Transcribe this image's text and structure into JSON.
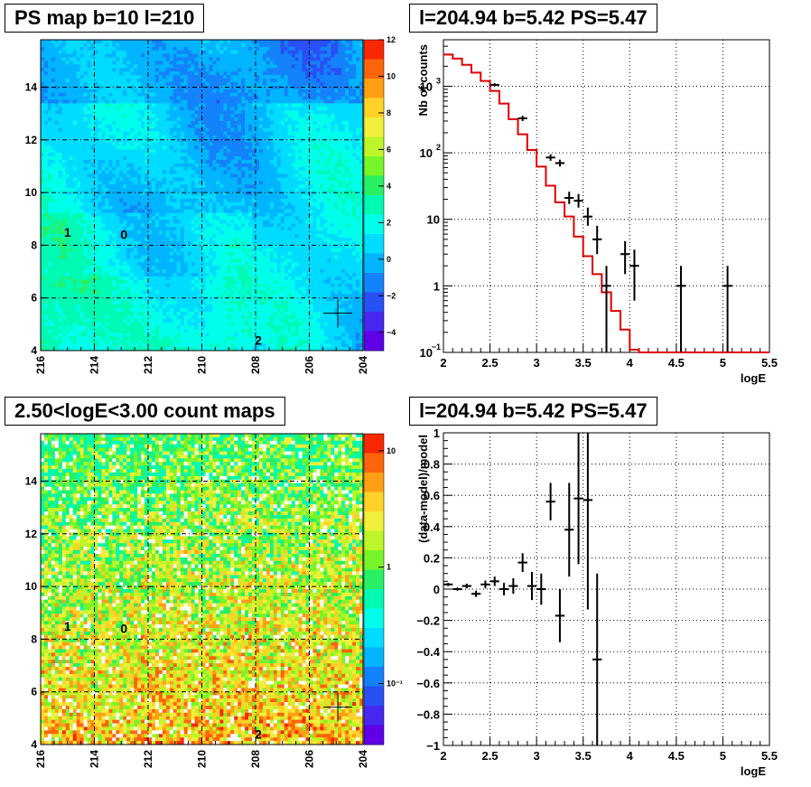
{
  "panels": {
    "tl": {
      "title": "PS map b=10 l=210"
    },
    "tr": {
      "title": "l=204.94 b=5.42 PS=5.47"
    },
    "bl": {
      "title": "2.50<logE<3.00 count maps"
    },
    "br": {
      "title": "l=204.94 b=5.42 PS=5.47"
    }
  },
  "chart_data": [
    {
      "type": "heatmap",
      "title": "PS map b=10 l=210",
      "x_ticks": [
        "216",
        "214",
        "212",
        "210",
        "208",
        "206",
        "204"
      ],
      "y_ticks": [
        "4",
        "6",
        "8",
        "10",
        "12",
        "14"
      ],
      "xlim": [
        216,
        204
      ],
      "ylim": [
        4,
        15.8
      ],
      "colorbar_ticks": [
        "12",
        "10",
        "8",
        "6",
        "4",
        "2",
        "0",
        "−2",
        "−4"
      ],
      "colorbar_range": [
        -5,
        12
      ],
      "source_labels": [
        {
          "label": "1",
          "l": 215.0,
          "b": 8.5
        },
        {
          "label": "0",
          "l": 212.9,
          "b": 8.4
        },
        {
          "label": "2",
          "l": 207.9,
          "b": 4.4
        }
      ],
      "marker": {
        "l": 204.94,
        "b": 5.42
      }
    },
    {
      "type": "line",
      "title": "l=204.94 b=5.42 PS=5.47",
      "xlabel": "logE",
      "ylabel": "Nb of counts",
      "xlim": [
        2,
        5.5
      ],
      "ylim": [
        0.1,
        5000
      ],
      "log_y": true,
      "grid": true,
      "x_ticks": [
        "2",
        "2.5",
        "3",
        "3.5",
        "4",
        "4.5",
        "5",
        "5.5"
      ],
      "y_ticks": [
        {
          "value": 1000,
          "base": "10",
          "exp": "3"
        },
        {
          "value": 100,
          "base": "10",
          "exp": "2"
        },
        {
          "value": 10,
          "base": "10",
          "exp": ""
        },
        {
          "value": 1,
          "base": "1",
          "exp": ""
        },
        {
          "value": 0.1,
          "base": "10",
          "exp": "−1"
        }
      ],
      "model_step": {
        "edges": [
          2.0,
          2.1,
          2.2,
          2.3,
          2.4,
          2.5,
          2.6,
          2.7,
          2.8,
          2.9,
          3.0,
          3.1,
          3.2,
          3.3,
          3.4,
          3.5,
          3.6,
          3.7,
          3.8,
          3.9,
          4.0,
          4.1,
          5.5
        ],
        "values": [
          3000,
          2600,
          2100,
          1600,
          1200,
          850,
          550,
          320,
          190,
          110,
          62,
          32,
          18,
          11,
          5.5,
          2.8,
          1.5,
          0.8,
          0.42,
          0.22,
          0.11,
          0.1
        ]
      },
      "data_points": [
        {
          "x": 2.55,
          "y": 1050,
          "ylo": 1000,
          "yhi": 1110
        },
        {
          "x": 2.85,
          "y": 330,
          "ylo": 300,
          "yhi": 360
        },
        {
          "x": 3.15,
          "y": 85,
          "ylo": 76,
          "yhi": 95
        },
        {
          "x": 3.25,
          "y": 70,
          "ylo": 62,
          "yhi": 79
        },
        {
          "x": 3.35,
          "y": 21,
          "ylo": 17,
          "yhi": 26
        },
        {
          "x": 3.45,
          "y": 19,
          "ylo": 15,
          "yhi": 24
        },
        {
          "x": 3.55,
          "y": 11,
          "ylo": 8,
          "yhi": 15
        },
        {
          "x": 3.65,
          "y": 5,
          "ylo": 3,
          "yhi": 8
        },
        {
          "x": 3.75,
          "y": 1,
          "ylo": 0.1,
          "yhi": 2
        },
        {
          "x": 3.95,
          "y": 3,
          "ylo": 1.5,
          "yhi": 4.7
        },
        {
          "x": 4.05,
          "y": 2,
          "ylo": 0.6,
          "yhi": 3.5
        },
        {
          "x": 4.55,
          "y": 1,
          "ylo": 0.1,
          "yhi": 2
        },
        {
          "x": 5.05,
          "y": 1,
          "ylo": 0.1,
          "yhi": 2
        }
      ]
    },
    {
      "type": "heatmap",
      "title": "2.50<logE<3.00 count maps",
      "x_ticks": [
        "216",
        "214",
        "212",
        "210",
        "208",
        "206",
        "204"
      ],
      "y_ticks": [
        "4",
        "6",
        "8",
        "10",
        "12",
        "14"
      ],
      "xlim": [
        216,
        204
      ],
      "ylim": [
        4,
        15.8
      ],
      "colorbar_ticks": [
        "10",
        "1",
        "10⁻¹"
      ],
      "colorbar_range": [
        0.03,
        14
      ],
      "log_colorbar": true,
      "source_labels": [
        {
          "label": "1",
          "l": 215.0,
          "b": 8.5
        },
        {
          "label": "0",
          "l": 212.9,
          "b": 8.4
        },
        {
          "label": "2",
          "l": 207.9,
          "b": 4.4
        }
      ],
      "marker": {
        "l": 204.94,
        "b": 5.42
      }
    },
    {
      "type": "scatter",
      "title": "l=204.94 b=5.42 PS=5.47",
      "xlabel": "logE",
      "ylabel": "(data-model)/model",
      "xlim": [
        2,
        5.5
      ],
      "ylim": [
        -1,
        1
      ],
      "grid": true,
      "x_ticks": [
        "2",
        "2.5",
        "3",
        "3.5",
        "4",
        "4.5",
        "5",
        "5.5"
      ],
      "y_ticks": [
        "1",
        "0.8",
        "0.6",
        "0.4",
        "0.2",
        "0",
        "−0.2",
        "−0.4",
        "−0.6",
        "−0.8",
        "−1"
      ],
      "data_points": [
        {
          "x": 2.05,
          "y": 0.03,
          "err": 0.01
        },
        {
          "x": 2.15,
          "y": 0.0,
          "err": 0.01
        },
        {
          "x": 2.25,
          "y": 0.02,
          "err": 0.015
        },
        {
          "x": 2.35,
          "y": -0.03,
          "err": 0.02
        },
        {
          "x": 2.45,
          "y": 0.03,
          "err": 0.025
        },
        {
          "x": 2.55,
          "y": 0.05,
          "err": 0.03
        },
        {
          "x": 2.65,
          "y": 0.0,
          "err": 0.04
        },
        {
          "x": 2.75,
          "y": 0.02,
          "err": 0.05
        },
        {
          "x": 2.85,
          "y": 0.17,
          "err": 0.06
        },
        {
          "x": 2.95,
          "y": 0.02,
          "err": 0.09
        },
        {
          "x": 3.05,
          "y": 0.0,
          "err": 0.1
        },
        {
          "x": 3.15,
          "y": 0.56,
          "err": 0.12
        },
        {
          "x": 3.25,
          "y": -0.17,
          "err": 0.17
        },
        {
          "x": 3.35,
          "y": 0.38,
          "err": 0.3
        },
        {
          "x": 3.45,
          "y": 0.58,
          "err": 0.42
        },
        {
          "x": 3.55,
          "y": 0.57,
          "err": 0.7
        },
        {
          "x": 3.65,
          "y": -0.45,
          "err": 0.55
        }
      ]
    }
  ]
}
